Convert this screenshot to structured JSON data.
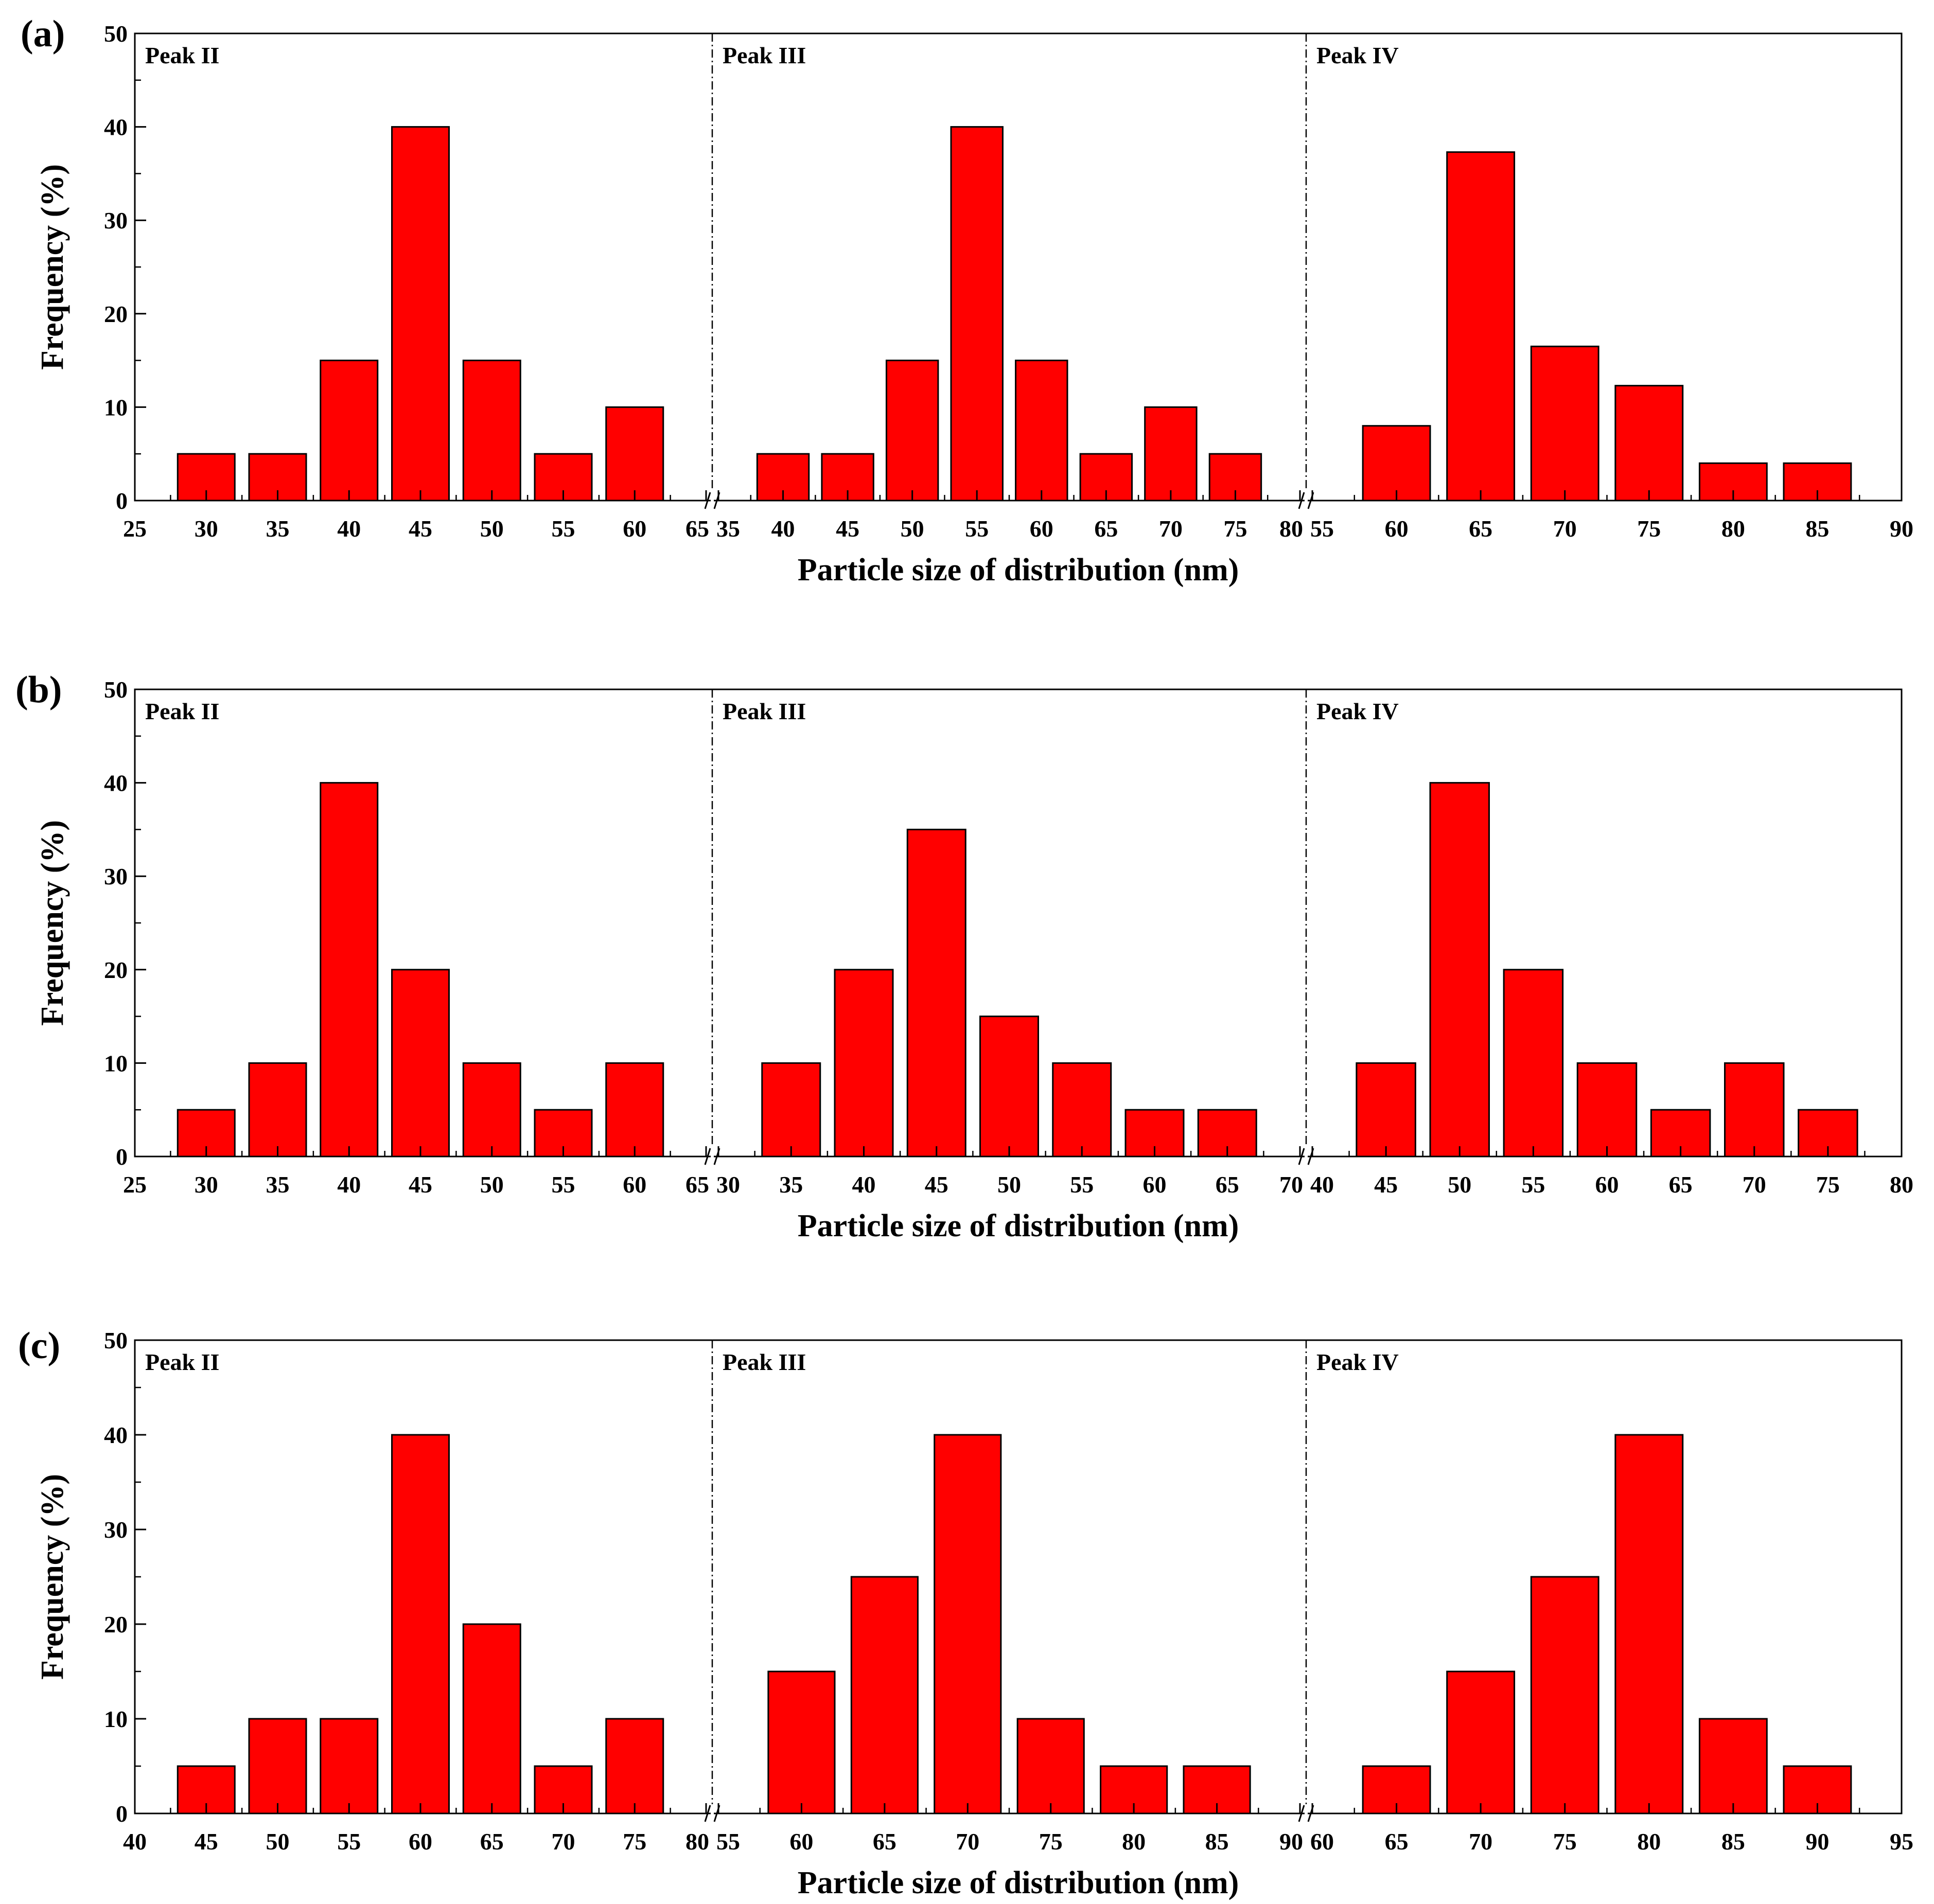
{
  "chart_data": [
    {
      "type": "bar",
      "panel_label": "(a)",
      "ylabel": "Frequency (%)",
      "xlabel": "Particle size of distribution (nm)",
      "ylim": [
        0,
        50
      ],
      "yticks": [
        0,
        10,
        20,
        30,
        40,
        50
      ],
      "bar_color": "#ff0000",
      "subplots": [
        {
          "title": "Peak II",
          "xlim": [
            25,
            65
          ],
          "xticks": [
            25,
            30,
            35,
            40,
            45,
            50,
            55,
            60,
            65
          ],
          "x": [
            30,
            35,
            40,
            45,
            50,
            55,
            60
          ],
          "values": [
            5,
            5,
            15,
            40,
            15,
            5,
            10
          ]
        },
        {
          "title": "Peak III",
          "xlim": [
            35,
            80
          ],
          "xticks": [
            35,
            40,
            45,
            50,
            55,
            60,
            65,
            70,
            75,
            80
          ],
          "x": [
            40,
            45,
            50,
            55,
            60,
            65,
            70,
            75
          ],
          "values": [
            5,
            5,
            15,
            40,
            15,
            5,
            10,
            5
          ]
        },
        {
          "title": "Peak IV",
          "xlim": [
            55,
            90
          ],
          "xticks": [
            55,
            60,
            65,
            70,
            75,
            80,
            85,
            90
          ],
          "x": [
            60,
            65,
            70,
            75,
            80,
            85
          ],
          "values": [
            8,
            37.3,
            16.5,
            12.3,
            4,
            4
          ]
        }
      ]
    },
    {
      "type": "bar",
      "panel_label": "(b)",
      "ylabel": "Frequency (%)",
      "xlabel": "Particle size of distribution (nm)",
      "ylim": [
        0,
        50
      ],
      "yticks": [
        0,
        10,
        20,
        30,
        40,
        50
      ],
      "bar_color": "#ff0000",
      "subplots": [
        {
          "title": "Peak II",
          "xlim": [
            25,
            65
          ],
          "xticks": [
            25,
            30,
            35,
            40,
            45,
            50,
            55,
            60,
            65
          ],
          "x": [
            30,
            35,
            40,
            45,
            50,
            55,
            60
          ],
          "values": [
            5,
            10,
            40,
            20,
            10,
            5,
            10
          ]
        },
        {
          "title": "Peak III",
          "xlim": [
            30,
            70
          ],
          "xticks": [
            30,
            35,
            40,
            45,
            50,
            55,
            60,
            65,
            70
          ],
          "x": [
            35,
            40,
            45,
            50,
            55,
            60,
            65
          ],
          "values": [
            10,
            20,
            35,
            15,
            10,
            5,
            5
          ]
        },
        {
          "title": "Peak IV",
          "xlim": [
            40,
            80
          ],
          "xticks": [
            40,
            45,
            50,
            55,
            60,
            65,
            70,
            75,
            80
          ],
          "x": [
            45,
            50,
            55,
            60,
            65,
            70,
            75
          ],
          "values": [
            10,
            40,
            20,
            10,
            5,
            10,
            5
          ]
        }
      ]
    },
    {
      "type": "bar",
      "panel_label": "(c)",
      "ylabel": "Frequency (%)",
      "xlabel": "Particle size of distribution (nm)",
      "ylim": [
        0,
        50
      ],
      "yticks": [
        0,
        10,
        20,
        30,
        40,
        50
      ],
      "bar_color": "#ff0000",
      "subplots": [
        {
          "title": "Peak II",
          "xlim": [
            40,
            80
          ],
          "xticks": [
            40,
            45,
            50,
            55,
            60,
            65,
            70,
            75,
            80
          ],
          "x": [
            45,
            50,
            55,
            60,
            65,
            70,
            75
          ],
          "values": [
            5,
            10,
            10,
            40,
            20,
            5,
            10
          ]
        },
        {
          "title": "Peak III",
          "xlim": [
            55,
            90
          ],
          "xticks": [
            55,
            60,
            65,
            70,
            75,
            80,
            85,
            90
          ],
          "x": [
            60,
            65,
            70,
            75,
            80,
            85
          ],
          "values": [
            15,
            25,
            40,
            10,
            5,
            5
          ]
        },
        {
          "title": "Peak IV",
          "xlim": [
            60,
            95
          ],
          "xticks": [
            60,
            65,
            70,
            75,
            80,
            85,
            90,
            95
          ],
          "x": [
            65,
            70,
            75,
            80,
            85,
            90
          ],
          "values": [
            5,
            15,
            25,
            40,
            10,
            5
          ]
        }
      ]
    }
  ]
}
